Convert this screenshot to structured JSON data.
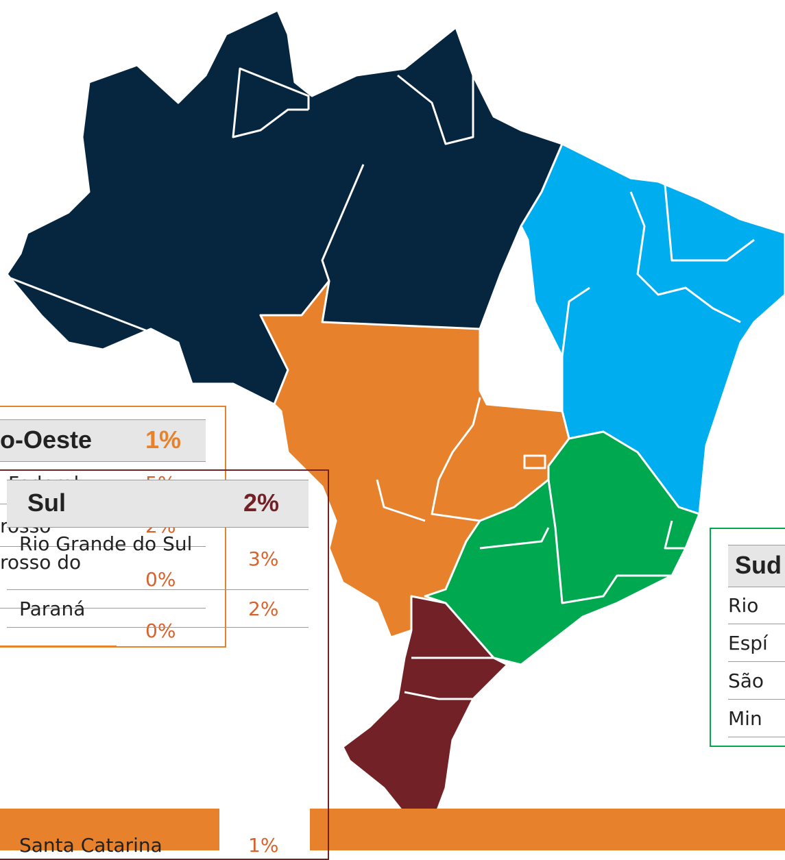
{
  "centro_oeste": {
    "title": "o-Oeste",
    "total": "1%",
    "rows": [
      {
        "name": "Federal",
        "pct": "5%"
      },
      {
        "name": "rosso",
        "pct": "2%"
      },
      {
        "name": "rosso do",
        "pct": "0%"
      },
      {
        "pct": "0%"
      }
    ]
  },
  "sul": {
    "title": "Sul",
    "total": "2%",
    "rows": [
      {
        "name": "Rio Grande do Sul",
        "pct": "3%"
      },
      {
        "name": "Paraná",
        "pct": "2%"
      },
      {
        "name": "Santa Catarina",
        "pct": "1%"
      }
    ]
  },
  "sudeste": {
    "title": "Sud",
    "rows": [
      {
        "name": "Rio"
      },
      {
        "name": "Espí"
      },
      {
        "name": "São"
      },
      {
        "name": "Min"
      }
    ]
  }
}
